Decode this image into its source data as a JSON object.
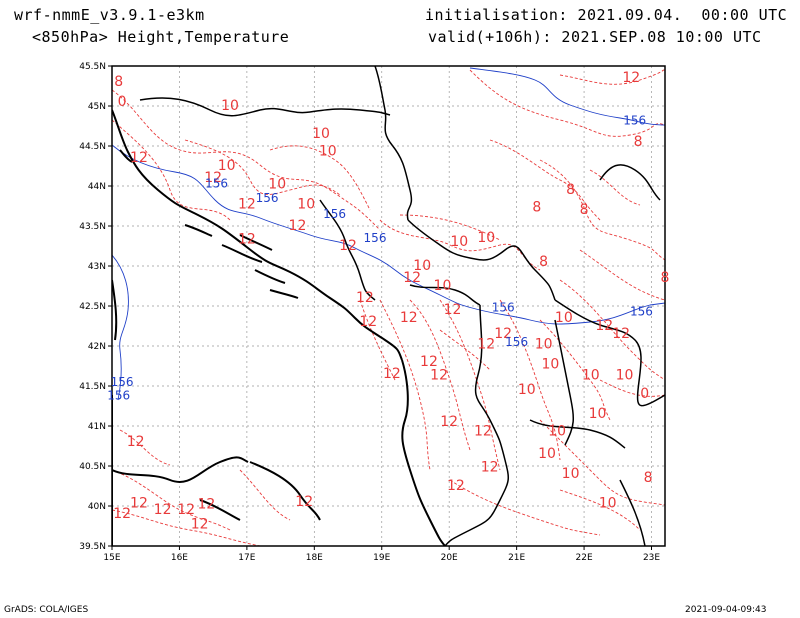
{
  "header": {
    "model": "wrf-nmmE_v3.9.1-e3km",
    "level": "<850hPa> Height,Temperature",
    "init": "initialisation: 2021.09.04.  00:00 UTC",
    "valid": "valid(+106h): 2021.SEP.08 10:00 UTC"
  },
  "footer": {
    "left": "GrADS: COLA/IGES",
    "right": "2021-09-04-09:43"
  },
  "colors": {
    "temperature": "#e83a3a",
    "height": "#2040c8",
    "coast": "#000000",
    "grid": "#999999"
  },
  "map": {
    "lon_range": [
      15,
      23.2
    ],
    "lat_range": [
      39.5,
      45.5
    ],
    "lon_ticks": [
      "15E",
      "16E",
      "17E",
      "18E",
      "19E",
      "20E",
      "21E",
      "22E",
      "23E"
    ],
    "lat_ticks": [
      "45.5N",
      "45N",
      "44.5N",
      "44N",
      "43.5N",
      "43N",
      "42.5N",
      "42N",
      "41.5N",
      "41N",
      "40.5N",
      "40N",
      "39.5N"
    ],
    "temperature_labels": [
      {
        "text": "12",
        "lon": 22.7,
        "lat": 45.3
      },
      {
        "text": "8",
        "lon": 15.1,
        "lat": 45.25
      },
      {
        "text": "0",
        "lon": 15.15,
        "lat": 45.0
      },
      {
        "text": "10",
        "lon": 16.75,
        "lat": 44.95
      },
      {
        "text": "10",
        "lon": 18.1,
        "lat": 44.6
      },
      {
        "text": "10",
        "lon": 18.2,
        "lat": 44.38
      },
      {
        "text": "12",
        "lon": 15.4,
        "lat": 44.3
      },
      {
        "text": "10",
        "lon": 16.7,
        "lat": 44.2
      },
      {
        "text": "12",
        "lon": 16.5,
        "lat": 44.05
      },
      {
        "text": "10",
        "lon": 17.45,
        "lat": 43.97
      },
      {
        "text": "10",
        "lon": 17.88,
        "lat": 43.72
      },
      {
        "text": "12",
        "lon": 17.0,
        "lat": 43.72
      },
      {
        "text": "12",
        "lon": 17.75,
        "lat": 43.45
      },
      {
        "text": "12",
        "lon": 17.0,
        "lat": 43.28
      },
      {
        "text": "12",
        "lon": 18.5,
        "lat": 43.2
      },
      {
        "text": "8",
        "lon": 21.8,
        "lat": 43.9
      },
      {
        "text": "8",
        "lon": 21.3,
        "lat": 43.68
      },
      {
        "text": "8",
        "lon": 22.0,
        "lat": 43.65
      },
      {
        "text": "8",
        "lon": 22.8,
        "lat": 44.5
      },
      {
        "text": "10",
        "lon": 20.15,
        "lat": 43.25
      },
      {
        "text": "10",
        "lon": 20.55,
        "lat": 43.3
      },
      {
        "text": "8",
        "lon": 21.4,
        "lat": 43.0
      },
      {
        "text": "8",
        "lon": 23.2,
        "lat": 42.8
      },
      {
        "text": "10",
        "lon": 19.6,
        "lat": 42.95
      },
      {
        "text": "12",
        "lon": 19.45,
        "lat": 42.8
      },
      {
        "text": "10",
        "lon": 19.9,
        "lat": 42.7
      },
      {
        "text": "12",
        "lon": 18.75,
        "lat": 42.55
      },
      {
        "text": "12",
        "lon": 18.8,
        "lat": 42.25
      },
      {
        "text": "12",
        "lon": 19.4,
        "lat": 42.3
      },
      {
        "text": "12",
        "lon": 20.05,
        "lat": 42.4
      },
      {
        "text": "12",
        "lon": 20.8,
        "lat": 42.1
      },
      {
        "text": "12",
        "lon": 20.55,
        "lat": 41.97
      },
      {
        "text": "10",
        "lon": 21.7,
        "lat": 42.3
      },
      {
        "text": "12",
        "lon": 22.3,
        "lat": 42.2
      },
      {
        "text": "12",
        "lon": 22.55,
        "lat": 42.1
      },
      {
        "text": "10",
        "lon": 21.4,
        "lat": 41.97
      },
      {
        "text": "12",
        "lon": 19.7,
        "lat": 41.75
      },
      {
        "text": "12",
        "lon": 19.15,
        "lat": 41.6
      },
      {
        "text": "12",
        "lon": 19.85,
        "lat": 41.58
      },
      {
        "text": "10",
        "lon": 21.5,
        "lat": 41.72
      },
      {
        "text": "10",
        "lon": 22.1,
        "lat": 41.58
      },
      {
        "text": "10",
        "lon": 22.6,
        "lat": 41.58
      },
      {
        "text": "10",
        "lon": 21.15,
        "lat": 41.4
      },
      {
        "text": "0",
        "lon": 22.9,
        "lat": 41.35
      },
      {
        "text": "12",
        "lon": 20.0,
        "lat": 41.0
      },
      {
        "text": "12",
        "lon": 20.5,
        "lat": 40.88
      },
      {
        "text": "10",
        "lon": 21.6,
        "lat": 40.88
      },
      {
        "text": "10",
        "lon": 22.2,
        "lat": 41.1
      },
      {
        "text": "12",
        "lon": 15.35,
        "lat": 40.75
      },
      {
        "text": "10",
        "lon": 21.45,
        "lat": 40.6
      },
      {
        "text": "12",
        "lon": 20.6,
        "lat": 40.43
      },
      {
        "text": "10",
        "lon": 21.8,
        "lat": 40.35
      },
      {
        "text": "8",
        "lon": 22.95,
        "lat": 40.3
      },
      {
        "text": "12",
        "lon": 20.1,
        "lat": 40.2
      },
      {
        "text": "12",
        "lon": 16.4,
        "lat": 39.97
      },
      {
        "text": "12",
        "lon": 17.85,
        "lat": 40.0
      },
      {
        "text": "10",
        "lon": 22.35,
        "lat": 39.98
      },
      {
        "text": "12",
        "lon": 15.4,
        "lat": 39.98
      },
      {
        "text": "12",
        "lon": 15.15,
        "lat": 39.85
      },
      {
        "text": "12",
        "lon": 15.75,
        "lat": 39.9
      },
      {
        "text": "12",
        "lon": 16.1,
        "lat": 39.9
      },
      {
        "text": "12",
        "lon": 16.3,
        "lat": 39.72
      }
    ],
    "height_labels": [
      {
        "text": "156",
        "lon": 22.75,
        "lat": 44.77
      },
      {
        "text": "156",
        "lon": 16.55,
        "lat": 43.98
      },
      {
        "text": "156",
        "lon": 17.3,
        "lat": 43.8
      },
      {
        "text": "156",
        "lon": 18.3,
        "lat": 43.6
      },
      {
        "text": "156",
        "lon": 18.9,
        "lat": 43.3
      },
      {
        "text": "156",
        "lon": 20.8,
        "lat": 42.43
      },
      {
        "text": "156",
        "lon": 21.0,
        "lat": 42.0
      },
      {
        "text": "156",
        "lon": 22.85,
        "lat": 42.38
      },
      {
        "text": "156",
        "lon": 15.15,
        "lat": 41.5
      },
      {
        "text": "156",
        "lon": 15.1,
        "lat": 41.33
      }
    ]
  }
}
